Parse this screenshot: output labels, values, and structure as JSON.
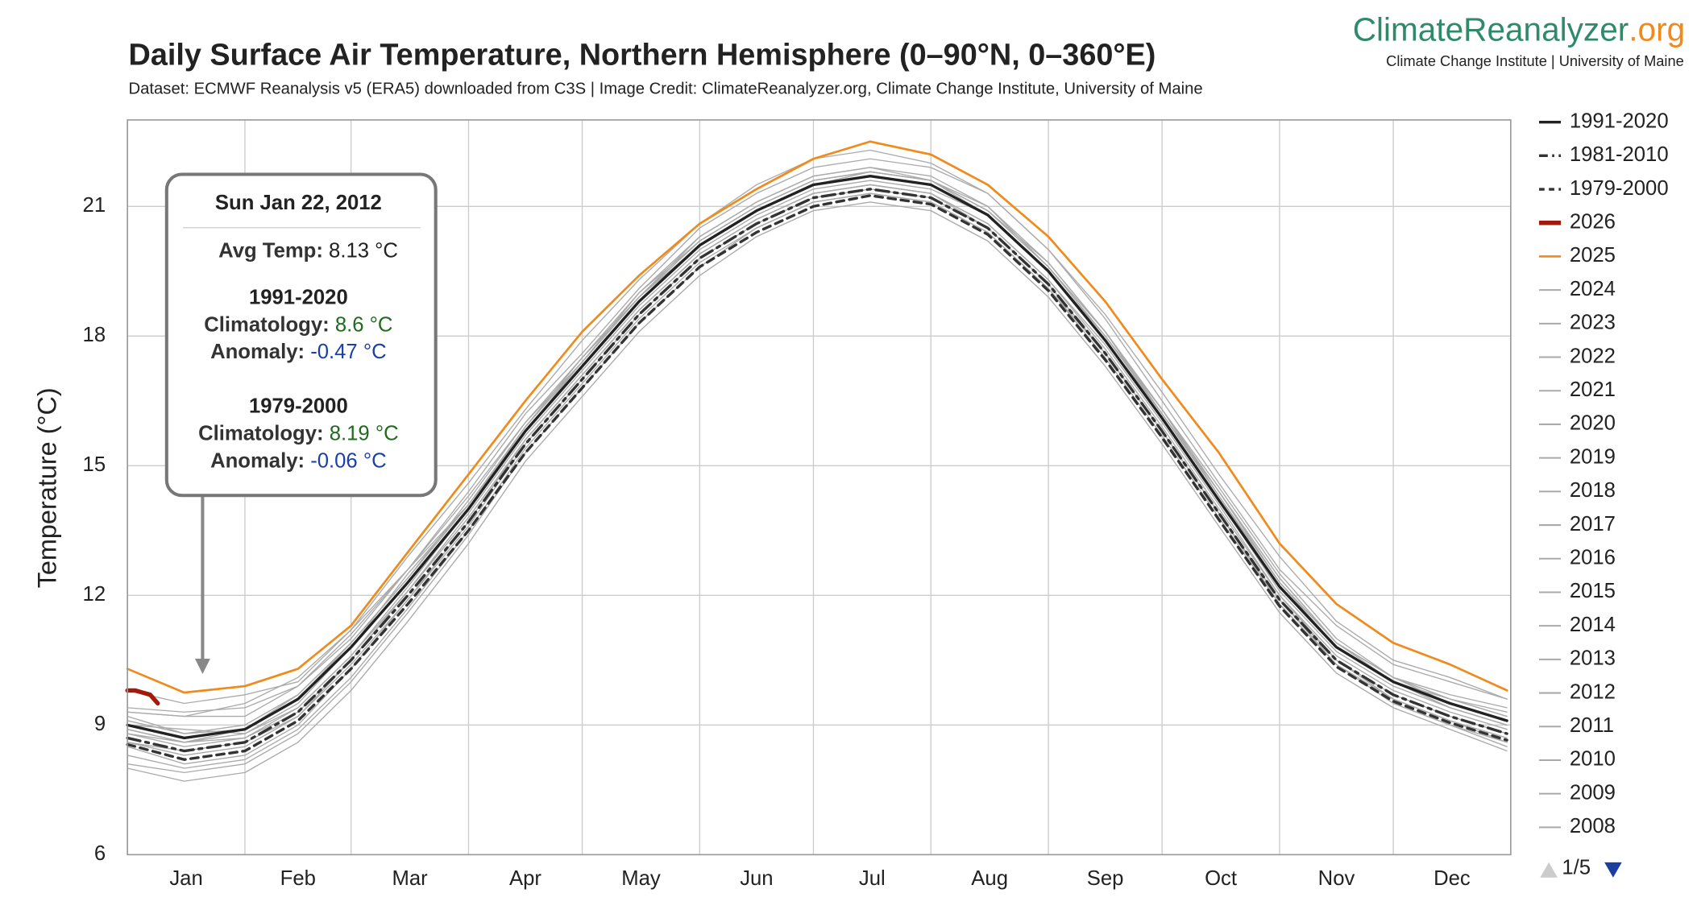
{
  "chart_data": {
    "type": "line",
    "title": "Daily Surface Air Temperature, Northern Hemisphere (0–90°N, 0–360°E)",
    "subtitle": "Dataset: ECMWF Reanalysis v5 (ERA5) downloaded from C3S | Image Credit: ClimateReanalyzer.org, Climate Change Institute, University of Maine",
    "y_label": "Temperature (°C)",
    "logo": {
      "text": "ClimateReanalyzer",
      "suffix": ".org",
      "subtitle": "Climate Change Institute | University of Maine"
    },
    "pager": "1/5",
    "grid": true,
    "xlim": [
      1,
      366
    ],
    "xticks": [
      {
        "value": 1,
        "label": "Jan"
      },
      {
        "value": 32,
        "label": "Feb"
      },
      {
        "value": 60,
        "label": "Mar"
      },
      {
        "value": 91,
        "label": "Apr"
      },
      {
        "value": 121,
        "label": "May"
      },
      {
        "value": 152,
        "label": "Jun"
      },
      {
        "value": 182,
        "label": "Jul"
      },
      {
        "value": 213,
        "label": "Aug"
      },
      {
        "value": 244,
        "label": "Sep"
      },
      {
        "value": 274,
        "label": "Oct"
      },
      {
        "value": 305,
        "label": "Nov"
      },
      {
        "value": 335,
        "label": "Dec"
      }
    ],
    "ylim": [
      6,
      23
    ],
    "yticks": [
      6,
      9,
      12,
      15,
      18,
      21
    ],
    "x": [
      1,
      16,
      32,
      46,
      60,
      75,
      91,
      106,
      121,
      136,
      152,
      167,
      182,
      197,
      213,
      228,
      244,
      259,
      274,
      289,
      305,
      320,
      335,
      350,
      365
    ],
    "series": [
      {
        "name": "1991-2020",
        "color": "#222222",
        "dash": "solid",
        "width": 2.5,
        "values": [
          9.0,
          8.7,
          8.9,
          9.6,
          10.8,
          12.3,
          14.0,
          15.8,
          17.3,
          18.8,
          20.1,
          20.9,
          21.5,
          21.7,
          21.5,
          20.8,
          19.5,
          17.9,
          16.1,
          14.2,
          12.2,
          10.8,
          10.0,
          9.5,
          9.1
        ]
      },
      {
        "name": "1981-2010",
        "color": "#333333",
        "dash": "dashdot",
        "width": 2.5,
        "values": [
          8.7,
          8.4,
          8.6,
          9.3,
          10.5,
          12.0,
          13.7,
          15.5,
          17.0,
          18.5,
          19.8,
          20.6,
          21.2,
          21.4,
          21.2,
          20.5,
          19.2,
          17.6,
          15.8,
          13.9,
          11.9,
          10.5,
          9.7,
          9.2,
          8.8
        ]
      },
      {
        "name": "1979-2000",
        "color": "#333333",
        "dash": "dash",
        "width": 2.5,
        "values": [
          8.55,
          8.2,
          8.4,
          9.1,
          10.3,
          11.8,
          13.5,
          15.3,
          16.8,
          18.3,
          19.6,
          20.4,
          21.0,
          21.25,
          21.05,
          20.35,
          19.05,
          17.45,
          15.65,
          13.75,
          11.75,
          10.35,
          9.55,
          9.05,
          8.65
        ]
      },
      {
        "name": "2026",
        "color": "#a31a0c",
        "dash": "solid",
        "width": 4,
        "x": [
          1,
          3,
          5,
          7,
          9
        ],
        "values": [
          9.8,
          9.8,
          9.75,
          9.7,
          9.5
        ]
      },
      {
        "name": "2025",
        "color": "#f08a1c",
        "dash": "solid",
        "width": 2,
        "values": [
          10.3,
          9.75,
          9.9,
          10.3,
          11.3,
          13.0,
          14.8,
          16.5,
          18.1,
          19.4,
          20.6,
          21.4,
          22.1,
          22.5,
          22.2,
          21.5,
          20.3,
          18.8,
          17.0,
          15.3,
          13.2,
          11.8,
          10.9,
          10.4,
          9.8
        ]
      },
      {
        "name": "2024",
        "color": "#aaaaaa",
        "dash": "solid",
        "width": 1,
        "values": [
          9.8,
          9.5,
          9.7,
          10.0,
          11.2,
          12.9,
          14.6,
          16.3,
          17.9,
          19.3,
          20.6,
          21.5,
          22.1,
          22.3,
          22.0,
          21.3,
          20.0,
          18.5,
          16.7,
          14.8,
          12.9,
          11.4,
          10.5,
          10.1,
          9.6
        ]
      },
      {
        "name": "2023",
        "color": "#aaaaaa",
        "dash": "solid",
        "width": 1,
        "values": [
          9.3,
          9.2,
          9.2,
          9.9,
          11.1,
          12.6,
          14.4,
          16.2,
          17.6,
          19.1,
          20.5,
          21.3,
          21.9,
          22.1,
          21.9,
          21.3,
          20.0,
          18.4,
          16.5,
          14.6,
          12.6,
          11.3,
          10.4,
          10.0,
          9.6
        ]
      },
      {
        "name": "2022",
        "color": "#aaaaaa",
        "dash": "solid",
        "width": 1,
        "values": [
          9.2,
          8.8,
          8.9,
          9.7,
          10.9,
          12.4,
          14.1,
          15.9,
          17.4,
          18.9,
          20.2,
          21.0,
          21.6,
          21.8,
          21.6,
          21.0,
          19.6,
          18.0,
          16.2,
          14.4,
          12.3,
          10.8,
          10.0,
          9.4,
          9.0
        ]
      },
      {
        "name": "2021",
        "color": "#aaaaaa",
        "dash": "solid",
        "width": 1,
        "values": [
          9.0,
          8.9,
          8.8,
          9.5,
          10.8,
          12.5,
          14.1,
          15.8,
          17.4,
          19.0,
          20.2,
          21.0,
          21.6,
          21.8,
          21.6,
          20.9,
          19.6,
          18.0,
          16.3,
          14.4,
          12.4,
          10.9,
          10.1,
          9.6,
          9.2
        ]
      },
      {
        "name": "2020",
        "color": "#aaaaaa",
        "dash": "solid",
        "width": 1,
        "values": [
          9.4,
          9.3,
          9.4,
          9.9,
          11.0,
          12.6,
          14.1,
          15.9,
          17.5,
          19.0,
          20.3,
          21.1,
          21.7,
          21.9,
          21.6,
          20.9,
          19.7,
          18.1,
          16.3,
          14.5,
          12.5,
          11.0,
          10.1,
          9.6,
          9.2
        ]
      },
      {
        "name": "2019",
        "color": "#aaaaaa",
        "dash": "solid",
        "width": 1,
        "values": [
          8.9,
          8.6,
          8.9,
          9.6,
          10.9,
          12.4,
          14.2,
          16.0,
          17.4,
          18.9,
          20.2,
          21.0,
          21.6,
          21.8,
          21.6,
          20.9,
          19.6,
          18.1,
          16.3,
          14.3,
          12.2,
          10.8,
          10.0,
          9.6,
          9.3
        ]
      },
      {
        "name": "2018",
        "color": "#aaaaaa",
        "dash": "solid",
        "width": 1,
        "values": [
          8.8,
          8.6,
          8.7,
          9.4,
          10.6,
          12.2,
          14.0,
          15.9,
          17.4,
          18.9,
          20.1,
          20.9,
          21.5,
          21.8,
          21.6,
          20.8,
          19.5,
          17.9,
          16.1,
          14.2,
          12.1,
          10.7,
          9.9,
          9.4,
          9.0
        ]
      },
      {
        "name": "2017",
        "color": "#aaaaaa",
        "dash": "solid",
        "width": 1,
        "values": [
          9.1,
          8.8,
          9.0,
          9.7,
          10.9,
          12.4,
          14.1,
          15.8,
          17.3,
          18.8,
          20.1,
          20.9,
          21.5,
          21.7,
          21.5,
          20.8,
          19.5,
          17.9,
          16.2,
          14.3,
          12.3,
          10.9,
          10.1,
          9.5,
          9.1
        ]
      },
      {
        "name": "2016",
        "color": "#aaaaaa",
        "dash": "solid",
        "width": 1,
        "values": [
          9.3,
          9.2,
          9.5,
          10.1,
          11.2,
          12.6,
          14.3,
          16.0,
          17.5,
          18.9,
          20.3,
          21.1,
          21.7,
          21.9,
          21.7,
          21.0,
          19.7,
          18.1,
          16.2,
          14.4,
          12.4,
          10.9,
          10.0,
          9.4,
          9.0
        ]
      },
      {
        "name": "2015",
        "color": "#aaaaaa",
        "dash": "solid",
        "width": 1,
        "values": [
          8.9,
          8.6,
          8.8,
          9.4,
          10.6,
          12.1,
          13.9,
          15.7,
          17.2,
          18.7,
          20.0,
          20.8,
          21.4,
          21.6,
          21.4,
          20.8,
          19.5,
          18.0,
          16.2,
          14.3,
          12.3,
          10.9,
          10.1,
          9.7,
          9.4
        ]
      },
      {
        "name": "2014",
        "color": "#aaaaaa",
        "dash": "solid",
        "width": 1,
        "values": [
          8.8,
          8.5,
          8.7,
          9.3,
          10.5,
          12.1,
          13.8,
          15.6,
          17.1,
          18.6,
          19.9,
          20.7,
          21.3,
          21.5,
          21.3,
          20.6,
          19.3,
          17.8,
          16.0,
          14.1,
          12.0,
          10.6,
          9.8,
          9.3,
          8.9
        ]
      },
      {
        "name": "2013",
        "color": "#aaaaaa",
        "dash": "solid",
        "width": 1,
        "values": [
          8.6,
          8.3,
          8.5,
          9.2,
          10.4,
          11.9,
          13.6,
          15.5,
          17.0,
          18.5,
          19.8,
          20.6,
          21.2,
          21.4,
          21.2,
          20.5,
          19.2,
          17.6,
          15.8,
          13.9,
          11.9,
          10.5,
          9.7,
          9.2,
          8.8
        ]
      },
      {
        "name": "2012",
        "color": "#aaaaaa",
        "dash": "solid",
        "width": 1,
        "values": [
          8.5,
          8.1,
          8.3,
          9.0,
          10.3,
          11.9,
          13.7,
          15.6,
          17.1,
          18.6,
          19.9,
          20.7,
          21.3,
          21.5,
          21.3,
          20.5,
          19.2,
          17.6,
          15.8,
          13.9,
          11.8,
          10.4,
          9.5,
          9.0,
          8.6
        ]
      },
      {
        "name": "2011",
        "color": "#aaaaaa",
        "dash": "solid",
        "width": 1,
        "values": [
          8.3,
          8.0,
          8.2,
          8.9,
          10.1,
          11.7,
          13.5,
          15.4,
          16.9,
          18.4,
          19.7,
          20.5,
          21.1,
          21.3,
          21.1,
          20.4,
          19.1,
          17.5,
          15.7,
          13.8,
          11.8,
          10.4,
          9.6,
          9.1,
          8.7
        ]
      },
      {
        "name": "2010",
        "color": "#aaaaaa",
        "dash": "solid",
        "width": 1,
        "values": [
          8.6,
          8.4,
          8.6,
          9.2,
          10.5,
          12.1,
          13.8,
          15.6,
          17.1,
          18.6,
          19.9,
          20.7,
          21.3,
          21.5,
          21.3,
          20.6,
          19.3,
          17.7,
          15.9,
          14.0,
          12.0,
          10.5,
          9.6,
          9.1,
          8.6
        ]
      },
      {
        "name": "2009",
        "color": "#aaaaaa",
        "dash": "solid",
        "width": 1,
        "values": [
          8.1,
          7.9,
          8.1,
          8.8,
          10.0,
          11.6,
          13.4,
          15.3,
          16.8,
          18.3,
          19.6,
          20.5,
          21.1,
          21.3,
          21.1,
          20.4,
          19.1,
          17.6,
          15.8,
          13.9,
          11.9,
          10.4,
          9.5,
          9.0,
          8.5
        ]
      },
      {
        "name": "2008",
        "color": "#aaaaaa",
        "dash": "solid",
        "width": 1,
        "values": [
          8.0,
          7.7,
          7.9,
          8.6,
          9.8,
          11.4,
          13.2,
          15.1,
          16.6,
          18.1,
          19.4,
          20.3,
          20.9,
          21.1,
          20.9,
          20.2,
          18.9,
          17.3,
          15.5,
          13.6,
          11.6,
          10.2,
          9.4,
          8.9,
          8.4
        ]
      }
    ],
    "tooltip": {
      "date": "Sun Jan 22, 2012",
      "avg": {
        "label": "Avg Temp:",
        "value": "8.13 °C"
      },
      "groups": [
        {
          "name": "1991-2020",
          "climatology": {
            "label": "Climatology:",
            "value": "8.6 °C"
          },
          "anomaly": {
            "label": "Anomaly:",
            "value": "-0.47 °C"
          }
        },
        {
          "name": "1979-2000",
          "climatology": {
            "label": "Climatology:",
            "value": "8.19 °C"
          },
          "anomaly": {
            "label": "Anomaly:",
            "value": "-0.06 °C"
          }
        }
      ]
    }
  }
}
